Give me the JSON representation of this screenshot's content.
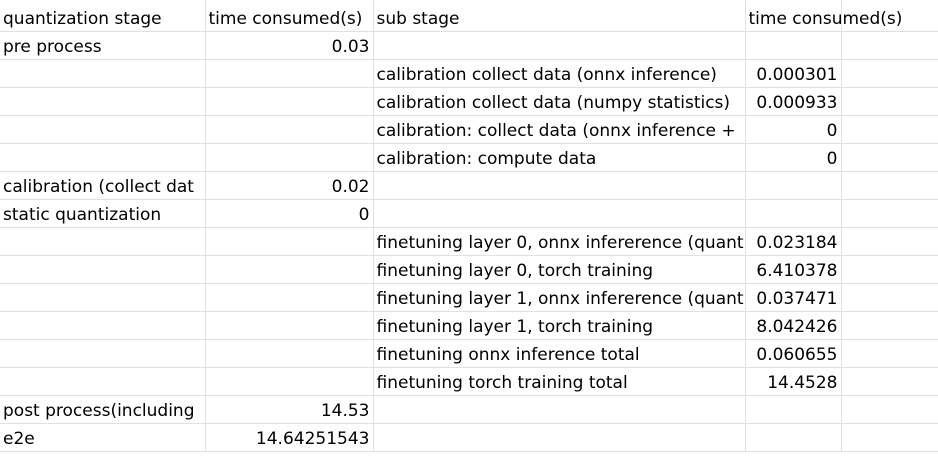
{
  "header": {
    "col_a": "quantization stage",
    "col_b": "time consumed(s)",
    "col_c": "sub stage",
    "col_d": "time consumed(s)",
    "col_e": ""
  },
  "rows": [
    {
      "a": "pre process",
      "b": "0.03",
      "c": "",
      "d": ""
    },
    {
      "a": "",
      "b": "",
      "c": "calibration collect data (onnx inference)",
      "d": "0.000301"
    },
    {
      "a": "",
      "b": "",
      "c": "calibration collect data (numpy statistics)",
      "d": "0.000933"
    },
    {
      "a": "",
      "b": "",
      "c": "calibration: collect data (onnx inference +",
      "d": "0"
    },
    {
      "a": "",
      "b": "",
      "c": "calibration: compute data",
      "d": "0"
    },
    {
      "a": "calibration (collect dat",
      "b": "0.02",
      "c": "",
      "d": ""
    },
    {
      "a": "static quantization",
      "b": "0",
      "c": "",
      "d": ""
    },
    {
      "a": "",
      "b": "",
      "c": "finetuning layer 0, onnx infererence (quant",
      "d": "0.023184"
    },
    {
      "a": "",
      "b": "",
      "c": "finetuning layer 0, torch training",
      "d": "6.410378"
    },
    {
      "a": "",
      "b": "",
      "c": "finetuning layer 1, onnx infererence (quant",
      "d": "0.037471"
    },
    {
      "a": "",
      "b": "",
      "c": "finetuning layer 1, torch training",
      "d": "8.042426"
    },
    {
      "a": "",
      "b": "",
      "c": "finetuning onnx inference total",
      "d": "0.060655"
    },
    {
      "a": "",
      "b": "",
      "c": "finetuning torch training total",
      "d": "14.4528"
    },
    {
      "a": "post process(including",
      "b": "14.53",
      "c": "",
      "d": ""
    },
    {
      "a": "e2e",
      "b": "14.64251543",
      "c": "",
      "d": ""
    }
  ]
}
